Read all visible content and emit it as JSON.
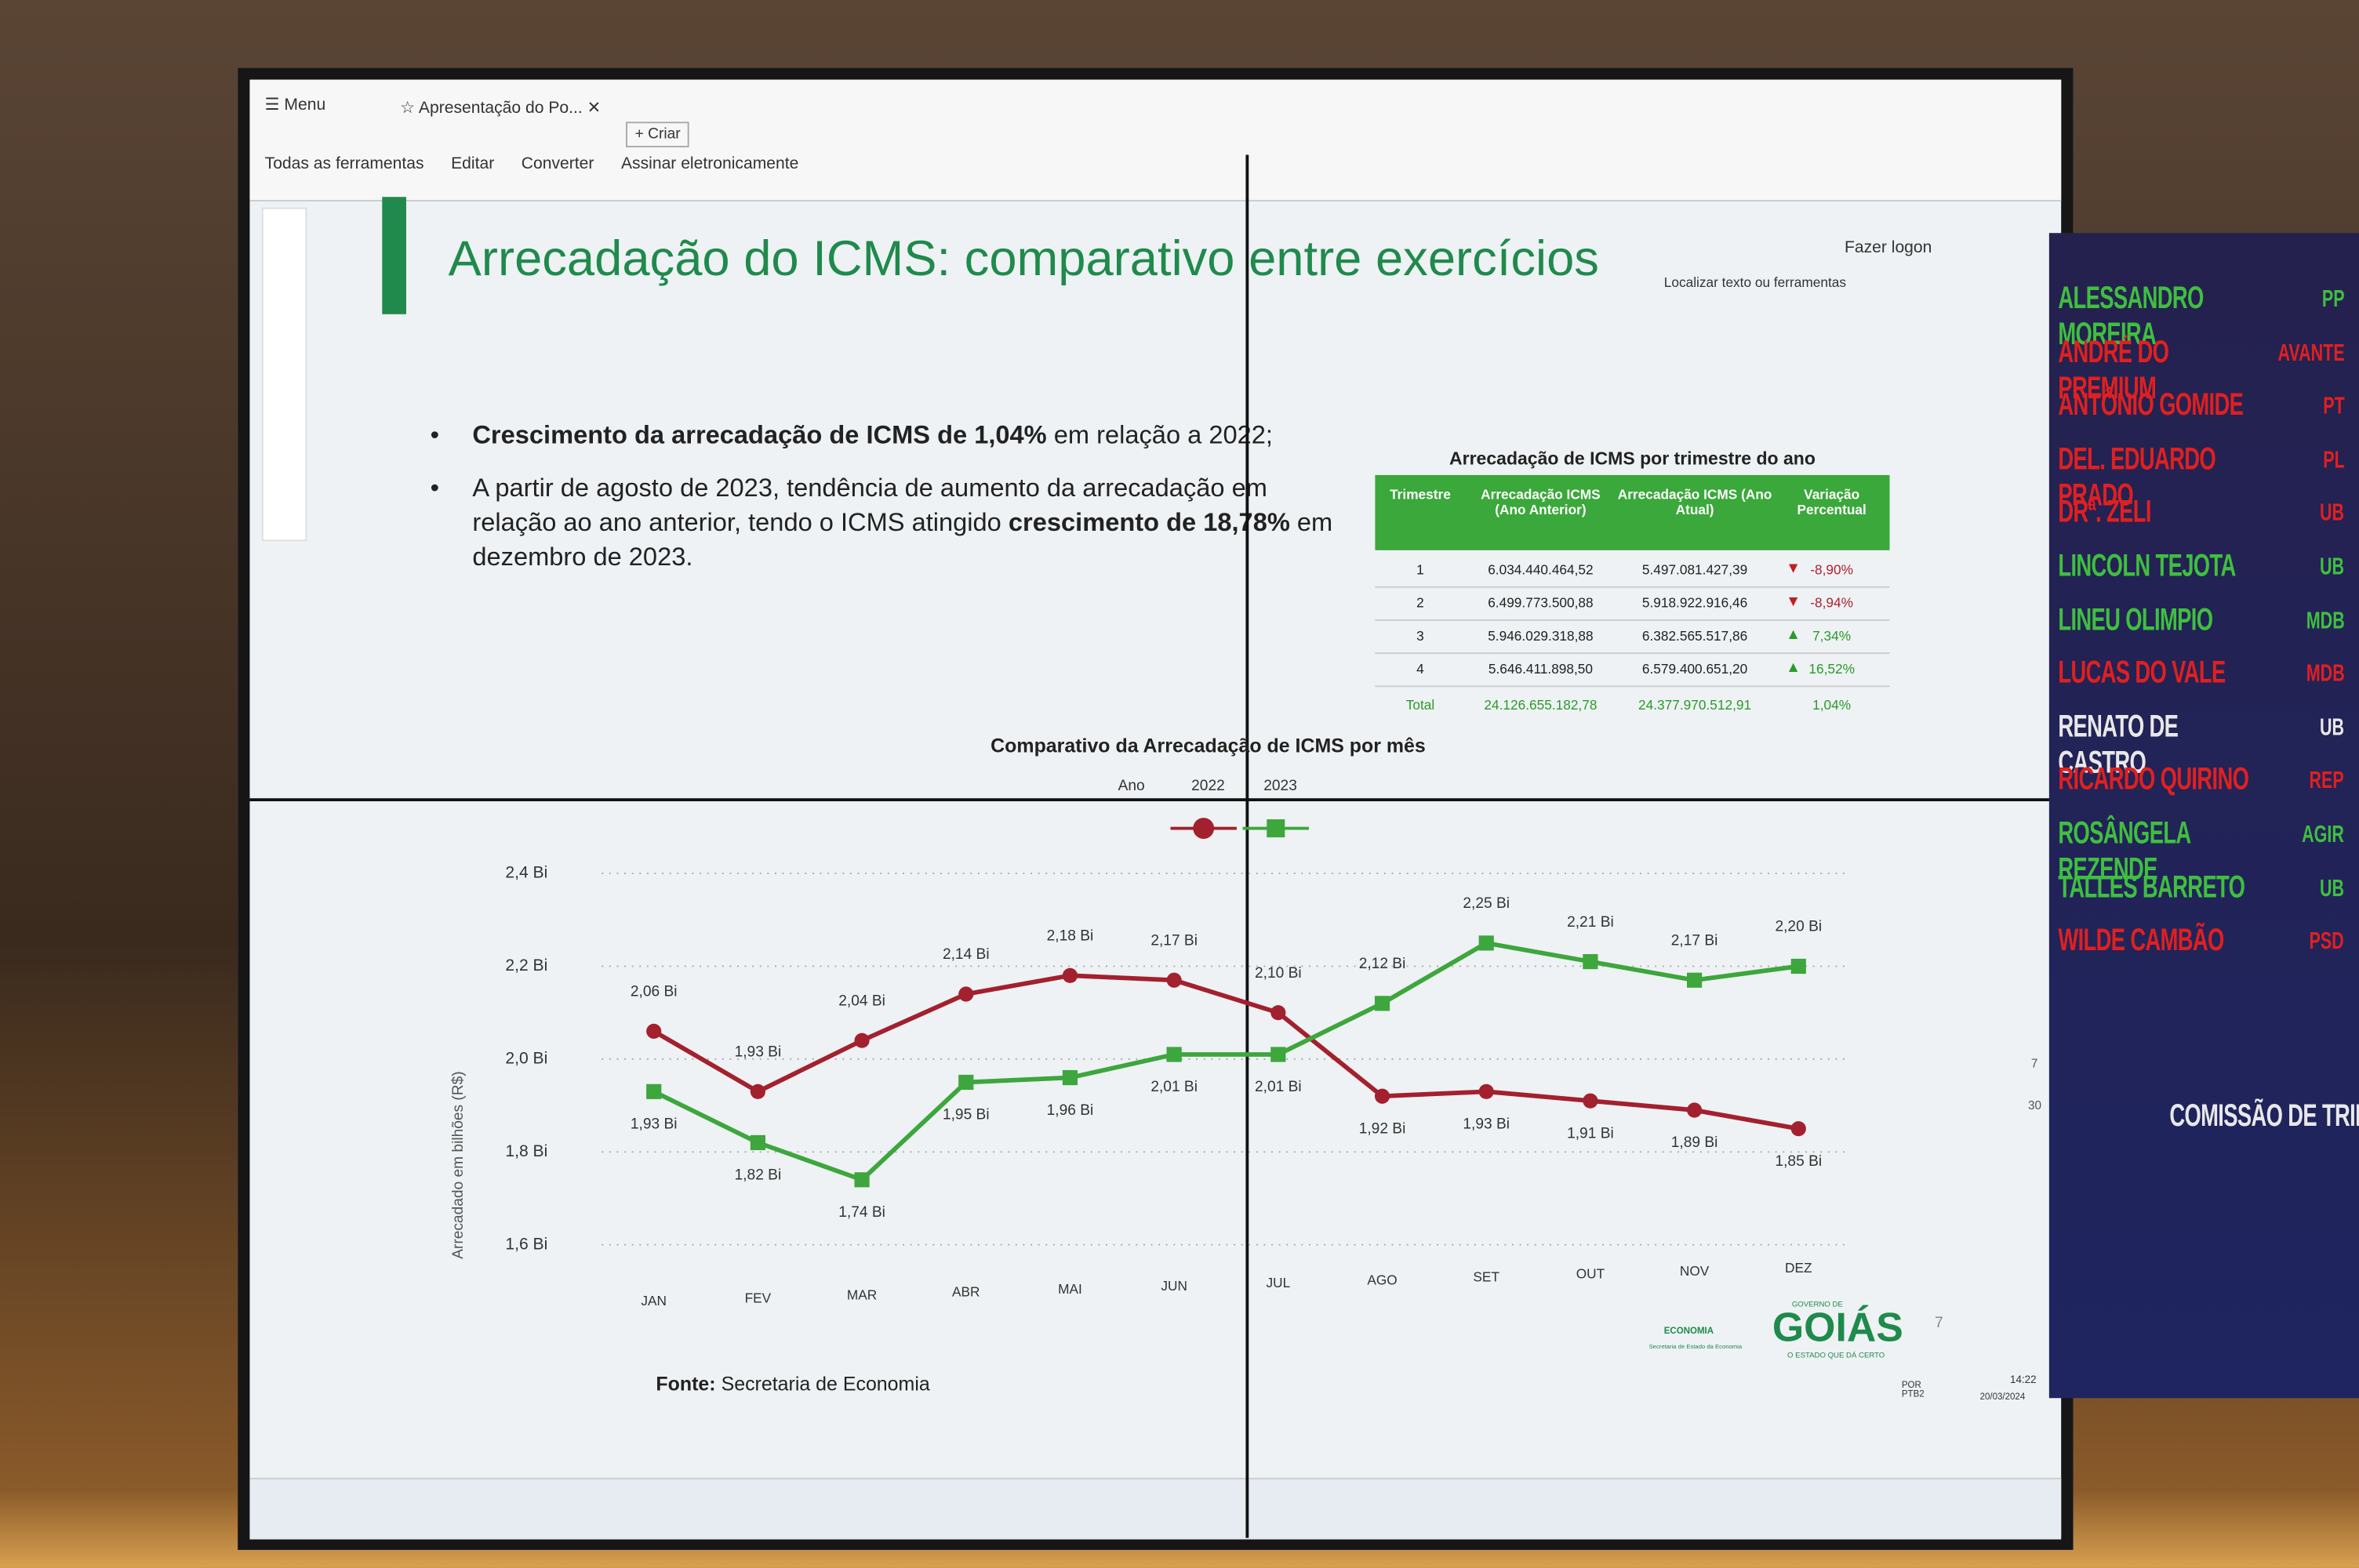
{
  "app": {
    "menu": "Menu",
    "tab": "Apresentação do Po...",
    "new_tab": "Criar",
    "toolbar": [
      "Todas as ferramentas",
      "Editar",
      "Converter",
      "Assinar eletronicamente"
    ],
    "search": "Localizar texto ou ferramentas",
    "login": "Fazer logon",
    "page_number": "7",
    "zoom_page": "7",
    "zoom_total": "30"
  },
  "slide": {
    "title": "Arrecadação do ICMS: comparativo entre exercícios",
    "bullets": [
      [
        {
          "text": "Crescimento da arrecadação de ICMS de 1,04%",
          "bold": true
        },
        {
          "text": " em relação a 2022;",
          "bold": false
        }
      ],
      [
        {
          "text": "A partir de agosto de 2023, tendência de aumento da arrecadação em relação ao ano anterior, tendo o ICMS atingido ",
          "bold": false
        },
        {
          "text": "crescimento de 18,78%",
          "bold": true
        },
        {
          "text": " em dezembro de 2023.",
          "bold": false
        }
      ]
    ],
    "source_label": "Fonte:",
    "source": "Secretaria de Economia",
    "logo_top": "GOVERNO DE",
    "logo": "GOIÁS",
    "logo_caption": "O ESTADO QUE DÁ CERTO",
    "economia": "ECONOMIA",
    "economia_caption": "Secretaria de Estado da Economia"
  },
  "table": {
    "title": "Arrecadação de ICMS por trimestre do ano",
    "headers": [
      "Trimestre",
      "Arrecadação ICMS (Ano Anterior)",
      "Arrecadação ICMS (Ano Atual)",
      "Variação Percentual"
    ],
    "rows": [
      [
        "1",
        "6.034.440.464,52",
        "5.497.081.427,39",
        "-8,90%"
      ],
      [
        "2",
        "6.499.773.500,88",
        "5.918.922.916,46",
        "-8,94%"
      ],
      [
        "3",
        "5.946.029.318,88",
        "6.382.565.517,86",
        "7,34%"
      ],
      [
        "4",
        "5.646.411.898,50",
        "6.579.400.651,20",
        "16,52%"
      ]
    ],
    "trend": [
      "down",
      "down",
      "up",
      "up"
    ],
    "total": [
      "Total",
      "24.126.655.182,78",
      "24.377.970.512,91",
      "1,04%"
    ]
  },
  "chart_data": {
    "type": "line",
    "title": "Comparativo da Arrecadação de ICMS por mês",
    "y_label": "Arrecadado em bilhões (R$)",
    "legend_title": "Ano",
    "categories": [
      "JAN",
      "FEV",
      "MAR",
      "ABR",
      "MAI",
      "JUN",
      "JUL",
      "AGO",
      "SET",
      "OUT",
      "NOV",
      "DEZ"
    ],
    "series": [
      {
        "name": "2022",
        "color": "#a3202e",
        "marker": "circle",
        "values": [
          2.06,
          1.93,
          2.04,
          2.14,
          2.18,
          2.17,
          2.1,
          1.92,
          1.93,
          1.91,
          1.89,
          1.85
        ],
        "value_labels": [
          "2,06 Bi",
          "1,93 Bi",
          "2,04 Bi",
          "2,14 Bi",
          "2,18 Bi",
          "2,17 Bi",
          "2,10 Bi",
          "1,92 Bi",
          "1,93 Bi",
          "1,91 Bi",
          "1,89 Bi",
          "1,85 Bi"
        ]
      },
      {
        "name": "2023",
        "color": "#3da63d",
        "marker": "square",
        "values": [
          1.93,
          1.82,
          1.74,
          1.95,
          1.96,
          2.01,
          2.01,
          2.12,
          2.25,
          2.21,
          2.17,
          2.2
        ],
        "value_labels": [
          "1,93 Bi",
          "1,82 Bi",
          "1,74 Bi",
          "1,95 Bi",
          "1,96 Bi",
          "2,01 Bi",
          "2,01 Bi",
          "2,12 Bi",
          "2,25 Bi",
          "2,21 Bi",
          "2,17 Bi",
          "2,20 Bi"
        ]
      }
    ],
    "ylim": [
      1.6,
      2.4
    ],
    "yticks": [
      {
        "value": 1.6,
        "label": "1,6 Bi"
      },
      {
        "value": 1.8,
        "label": "1,8 Bi"
      },
      {
        "value": 2.0,
        "label": "2,0 Bi"
      },
      {
        "value": 2.2,
        "label": "2,2 Bi"
      },
      {
        "value": 2.4,
        "label": "2,4 Bi"
      }
    ],
    "grid": true
  },
  "panel": {
    "members": [
      {
        "name": "ALESSANDRO MOREIRA",
        "party": "PP",
        "color": "#3fbf3f"
      },
      {
        "name": "ANDRÉ DO PREMIUM",
        "party": "AVANTE",
        "color": "#e02020"
      },
      {
        "name": "ANTÔNIO GOMIDE",
        "party": "PT",
        "color": "#e02020"
      },
      {
        "name": "DEL. EDUARDO PRADO",
        "party": "PL",
        "color": "#e02020"
      },
      {
        "name": "DRª. ZELI",
        "party": "UB",
        "color": "#e02020"
      },
      {
        "name": "LINCOLN TEJOTA",
        "party": "UB",
        "color": "#3fbf3f"
      },
      {
        "name": "LINEU OLIMPIO",
        "party": "MDB",
        "color": "#3fbf3f"
      },
      {
        "name": "LUCAS DO VALE",
        "party": "MDB",
        "color": "#e02020"
      },
      {
        "name": "RENATO DE CASTRO",
        "party": "UB",
        "color": "#e8e8e8"
      },
      {
        "name": "RICARDO QUIRINO",
        "party": "REP",
        "color": "#e02020"
      },
      {
        "name": "ROSÂNGELA REZENDE",
        "party": "AGIR",
        "color": "#3fbf3f"
      },
      {
        "name": "TALLES BARRETO",
        "party": "UB",
        "color": "#3fbf3f"
      },
      {
        "name": "WILDE CAMBÃO",
        "party": "PSD",
        "color": "#e02020"
      }
    ],
    "footer": "COMISSÃO DE TRIB"
  },
  "taskbar": {
    "lang": "POR PTB2",
    "time": "14:22",
    "date": "20/03/2024"
  }
}
